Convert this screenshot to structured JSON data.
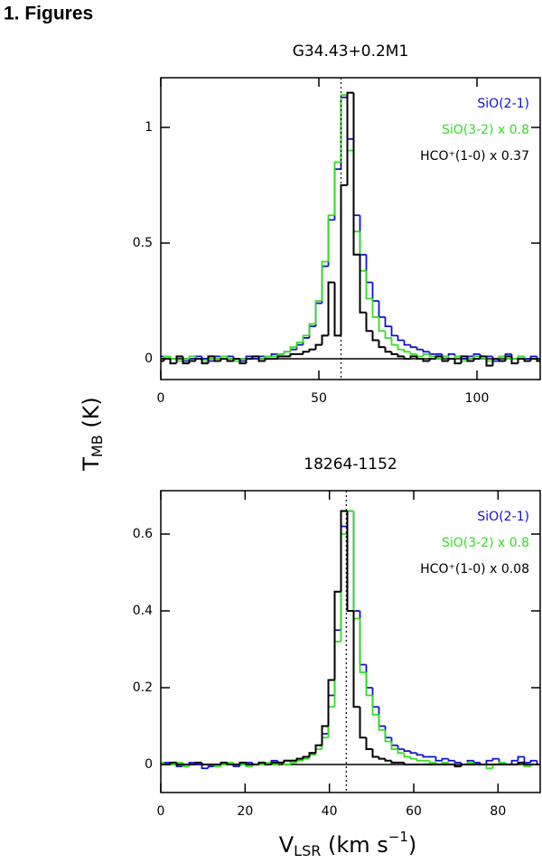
{
  "heading": "1. Figures",
  "ylabel": {
    "base": "T",
    "sub": "MB",
    "rest": " (K)"
  },
  "xlabel": {
    "base": "V",
    "sub": "LSR",
    "rest": " (km s",
    "sup": "−1",
    "end": ")"
  },
  "chart_data": [
    {
      "type": "step",
      "title": "G34.43+0.2M1",
      "xlim": [
        0,
        120
      ],
      "ylim": [
        -0.09,
        1.215
      ],
      "xticks": [
        0,
        50,
        100
      ],
      "yticks": [
        0,
        {
          "value": 0.5,
          "label": "0.5"
        },
        1
      ],
      "vline": 57,
      "legend": "upper right",
      "x": [
        0,
        2,
        4,
        6,
        8,
        10,
        12,
        14,
        16,
        18,
        20,
        22,
        24,
        26,
        28,
        30,
        32,
        34,
        36,
        38,
        40,
        42,
        44,
        46,
        48,
        50,
        52,
        54,
        56,
        58,
        60,
        62,
        64,
        66,
        68,
        70,
        72,
        74,
        76,
        78,
        80,
        82,
        84,
        86,
        88,
        90,
        92,
        94,
        96,
        98,
        100,
        102,
        104,
        106,
        108,
        110,
        112,
        114,
        116,
        118,
        120
      ],
      "series": [
        {
          "name": "SiO(2-1)",
          "color": "#1010d0",
          "values": [
            0.01,
            0.01,
            0.0,
            0.01,
            -0.01,
            0.0,
            0.01,
            0.0,
            -0.01,
            0.01,
            0.0,
            0.01,
            0.0,
            -0.01,
            0.01,
            0.0,
            0.01,
            0.01,
            0.02,
            0.02,
            0.03,
            0.04,
            0.06,
            0.09,
            0.14,
            0.24,
            0.4,
            0.6,
            0.82,
            1.13,
            0.95,
            0.62,
            0.45,
            0.33,
            0.25,
            0.18,
            0.14,
            0.1,
            0.08,
            0.06,
            0.05,
            0.04,
            0.03,
            0.02,
            0.02,
            0.01,
            0.02,
            0.01,
            0.0,
            0.01,
            0.02,
            0.0,
            0.01,
            -0.01,
            0.01,
            0.02,
            0.0,
            0.01,
            0.0,
            0.01,
            0.0
          ]
        },
        {
          "name": "SiO(3-2) x 0.8",
          "color": "#33dd22",
          "values": [
            0.0,
            0.01,
            0.0,
            -0.01,
            0.0,
            0.01,
            0.0,
            -0.01,
            0.0,
            0.0,
            0.01,
            0.0,
            -0.01,
            0.0,
            0.0,
            0.01,
            0.0,
            0.01,
            0.01,
            0.02,
            0.03,
            0.05,
            0.07,
            0.1,
            0.15,
            0.25,
            0.42,
            0.62,
            0.85,
            1.14,
            0.9,
            0.55,
            0.38,
            0.26,
            0.18,
            0.12,
            0.09,
            0.06,
            0.04,
            0.03,
            0.02,
            0.01,
            0.02,
            0.01,
            0.0,
            0.01,
            0.0,
            0.01,
            -0.01,
            0.0,
            0.01,
            0.0,
            -0.01,
            0.0,
            0.01,
            0.0,
            0.0,
            0.01,
            -0.01,
            0.0,
            0.0
          ]
        },
        {
          "name": "HCO⁺(1-0) x 0.37",
          "color": "#000000",
          "values": [
            -0.01,
            0.0,
            -0.02,
            0.01,
            -0.02,
            -0.01,
            0.0,
            -0.02,
            0.01,
            -0.01,
            0.0,
            -0.01,
            0.0,
            -0.02,
            0.0,
            0.01,
            -0.01,
            0.0,
            0.0,
            0.01,
            0.01,
            0.02,
            0.02,
            0.03,
            0.04,
            0.06,
            0.1,
            0.33,
            0.1,
            0.75,
            1.15,
            0.45,
            0.2,
            0.12,
            0.08,
            0.05,
            0.03,
            0.02,
            0.01,
            0.0,
            0.01,
            0.0,
            -0.01,
            0.0,
            0.01,
            -0.01,
            0.0,
            -0.02,
            0.01,
            -0.01,
            0.0,
            0.01,
            -0.03,
            0.0,
            -0.01,
            0.01,
            -0.02,
            0.0,
            -0.01,
            0.0,
            -0.01
          ]
        }
      ]
    },
    {
      "type": "step",
      "title": "18264-1152",
      "xlim": [
        0,
        90
      ],
      "ylim": [
        -0.073,
        0.713
      ],
      "xticks": [
        0,
        20,
        40,
        60,
        80
      ],
      "yticks": [
        0,
        {
          "value": 0.2,
          "label": "0.2"
        },
        {
          "value": 0.4,
          "label": "0.4"
        },
        {
          "value": 0.6,
          "label": "0.6"
        }
      ],
      "vline": 44,
      "legend": "upper right",
      "x": [
        0,
        1.5,
        3,
        4.5,
        6,
        7.5,
        9,
        10.5,
        12,
        13.5,
        15,
        16.5,
        18,
        19.5,
        21,
        22.5,
        24,
        25.5,
        27,
        28.5,
        30,
        31.5,
        33,
        34.5,
        36,
        37.5,
        39,
        40.5,
        42,
        43.5,
        45,
        46.5,
        48,
        49.5,
        51,
        52.5,
        54,
        55.5,
        57,
        58.5,
        60,
        61.5,
        63,
        64.5,
        66,
        67.5,
        69,
        70.5,
        72,
        73.5,
        75,
        76.5,
        78,
        79.5,
        81,
        82.5,
        84,
        85.5,
        87,
        88.5,
        90
      ],
      "series": [
        {
          "name": "SiO(2-1)",
          "color": "#1010d0",
          "values": [
            0.0,
            0.005,
            0.0,
            -0.005,
            0.0,
            0.005,
            0.0,
            -0.01,
            -0.005,
            0.0,
            0.005,
            0.0,
            -0.005,
            0.0,
            0.005,
            0.0,
            0.005,
            0.0,
            0.01,
            0.005,
            0.01,
            0.01,
            0.015,
            0.02,
            0.03,
            0.05,
            0.08,
            0.18,
            0.35,
            0.62,
            0.66,
            0.4,
            0.26,
            0.2,
            0.15,
            0.1,
            0.07,
            0.05,
            0.04,
            0.035,
            0.03,
            0.025,
            0.02,
            0.02,
            0.01,
            0.015,
            0.01,
            0.005,
            0.0,
            0.01,
            0.005,
            0.0,
            0.01,
            0.015,
            0.005,
            0.0,
            0.01,
            0.02,
            0.005,
            0.01,
            0.0
          ]
        },
        {
          "name": "SiO(3-2) x 0.8",
          "color": "#33dd22",
          "values": [
            0.005,
            0.0,
            0.0,
            0.005,
            -0.005,
            0.0,
            0.005,
            0.0,
            0.0,
            -0.005,
            0.0,
            0.005,
            0.0,
            0.0,
            -0.005,
            0.0,
            0.0,
            0.005,
            0.0,
            0.005,
            0.0,
            0.005,
            0.01,
            0.015,
            0.025,
            0.04,
            0.07,
            0.15,
            0.32,
            0.6,
            0.66,
            0.38,
            0.24,
            0.18,
            0.13,
            0.09,
            0.06,
            0.04,
            0.03,
            0.02,
            0.015,
            0.01,
            0.01,
            0.005,
            0.0,
            0.005,
            0.0,
            -0.005,
            0.0,
            0.005,
            0.0,
            0.0,
            -0.01,
            0.0,
            0.005,
            0.0,
            0.0,
            0.005,
            -0.005,
            0.0,
            0.0
          ]
        },
        {
          "name": "HCO⁺(1-0) x 0.08",
          "color": "#000000",
          "values": [
            0.0,
            0.0,
            0.005,
            0.0,
            0.0,
            0.0,
            0.005,
            0.0,
            0.0,
            0.0,
            0.005,
            0.0,
            0.0,
            0.005,
            0.0,
            0.0,
            0.005,
            0.0,
            0.005,
            0.005,
            0.01,
            0.01,
            0.015,
            0.02,
            0.03,
            0.05,
            0.1,
            0.22,
            0.45,
            0.66,
            0.4,
            0.15,
            0.07,
            0.04,
            0.02,
            0.015,
            0.01,
            0.005,
            0.005,
            0.0,
            0.0,
            0.0,
            0.0,
            0.0,
            0.0,
            0.0,
            0.0,
            -0.005,
            0.0,
            0.0,
            0.0,
            0.0,
            0.0,
            0.0,
            0.0,
            0.0,
            0.0,
            0.005,
            0.0,
            0.0,
            0.0
          ]
        }
      ]
    }
  ]
}
